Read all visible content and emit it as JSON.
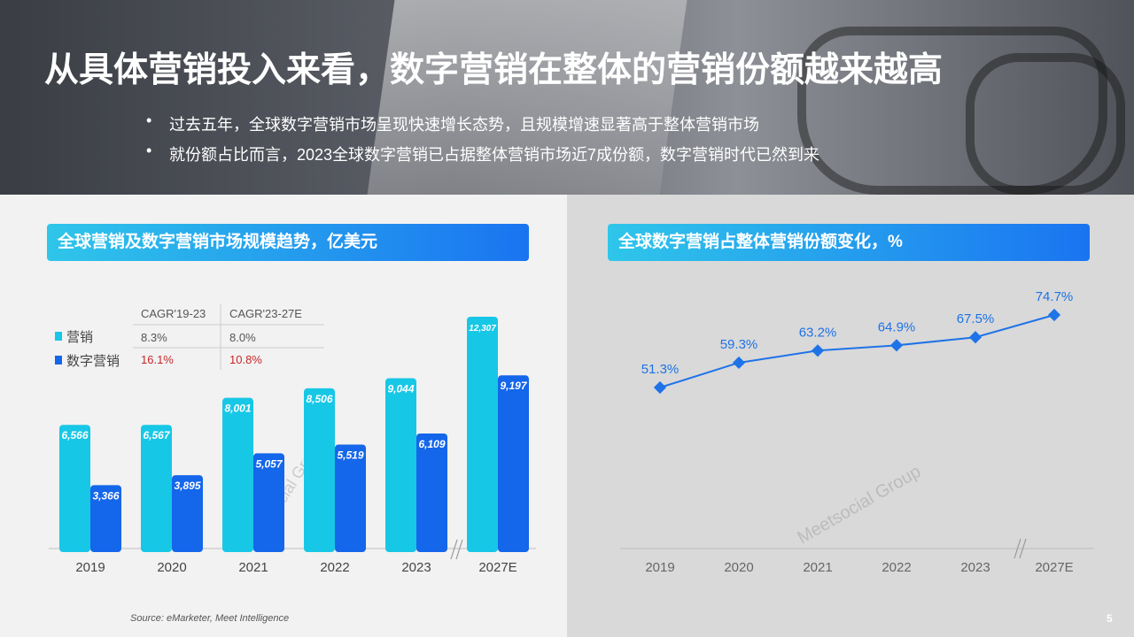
{
  "title": "从具体营销投入来看，数字营销在整体的营销份额越来越高",
  "bullets": [
    "过去五年，全球数字营销市场呈现快速增长态势，且规模增速显著高于整体营销市场",
    "就份额占比而言，2023全球数字营销已占据整体营销市场近7成份额，数字营销时代已然到来"
  ],
  "source": "Source: eMarketer, Meet Intelligence",
  "page_number": "5",
  "watermark": "Meetsocial Group",
  "colors": {
    "cyan": "#17c7e6",
    "blue": "#1466ea",
    "red": "#c62828",
    "line": "#1e73e8"
  },
  "cagr_table": {
    "headers": [
      "CAGR'19-23",
      "CAGR'23-27E"
    ],
    "rows": [
      {
        "label": "营销",
        "values": [
          "8.3%",
          "8.0%"
        ]
      },
      {
        "label": "数字营销",
        "values": [
          "16.1%",
          "10.8%"
        ]
      }
    ]
  },
  "chart_data": [
    {
      "type": "bar",
      "title": "全球营销及数字营销市场规模趋势，亿美元",
      "categories": [
        "2019",
        "2020",
        "2021",
        "2022",
        "2023",
        "2027E"
      ],
      "series": [
        {
          "name": "营销",
          "values": [
            6566,
            6567,
            8001,
            8506,
            9044,
            12307
          ],
          "labels": [
            "6,566",
            "6,567",
            "8,001",
            "8,506",
            "9,044",
            "12,307"
          ]
        },
        {
          "name": "数字营销",
          "values": [
            3366,
            3895,
            5057,
            5519,
            6109,
            9197
          ],
          "labels": [
            "3,366",
            "3,895",
            "5,057",
            "5,519",
            "6,109",
            "9,197"
          ]
        }
      ],
      "axis_break_before": "2027E"
    },
    {
      "type": "line",
      "title": "全球数字营销占整体营销份额变化，%",
      "categories": [
        "2019",
        "2020",
        "2021",
        "2022",
        "2023",
        "2027E"
      ],
      "values": [
        51.3,
        59.3,
        63.2,
        64.9,
        67.5,
        74.7
      ],
      "labels": [
        "51.3%",
        "59.3%",
        "63.2%",
        "64.9%",
        "67.5%",
        "74.7%"
      ],
      "axis_break_before": "2027E"
    }
  ]
}
